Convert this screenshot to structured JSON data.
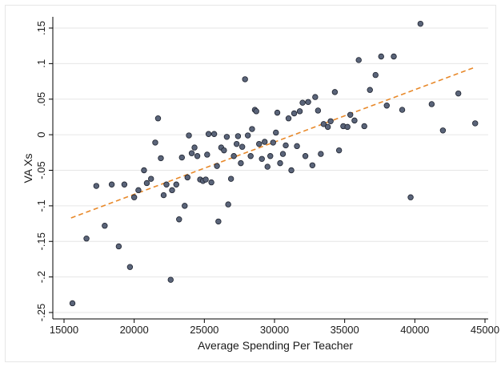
{
  "chart_data": {
    "type": "scatter",
    "xlabel": "Average Spending Per Teacher",
    "ylabel": "VA Xs",
    "xlim": [
      15000,
      45000
    ],
    "ylim": [
      -0.25,
      0.15
    ],
    "x_ticks": [
      15000,
      20000,
      25000,
      30000,
      35000,
      40000,
      45000
    ],
    "x_tick_labels": [
      "15000",
      "20000",
      "25000",
      "30000",
      "35000",
      "40000",
      "45000"
    ],
    "y_ticks": [
      -0.25,
      -0.2,
      -0.15,
      -0.1,
      -0.05,
      0,
      0.05,
      0.1,
      0.15
    ],
    "y_tick_labels": [
      "-.25",
      "-.2",
      "-.15",
      "-.1",
      "-.05",
      "0",
      ".05",
      ".1",
      ".15"
    ],
    "grid": "horizontal",
    "colors": {
      "marker_fill": "#5a6479",
      "marker_stroke": "#1f2430",
      "fit_line": "#e8892a",
      "grid": "#e6e6e6",
      "outer_frame": "#e6e6e6",
      "axis": "#000000"
    },
    "points": [
      {
        "x": 15600,
        "y": -0.237
      },
      {
        "x": 16600,
        "y": -0.146
      },
      {
        "x": 17300,
        "y": -0.072
      },
      {
        "x": 17900,
        "y": -0.128
      },
      {
        "x": 18400,
        "y": -0.07
      },
      {
        "x": 18900,
        "y": -0.157
      },
      {
        "x": 19300,
        "y": -0.07
      },
      {
        "x": 19700,
        "y": -0.186
      },
      {
        "x": 20000,
        "y": -0.088
      },
      {
        "x": 20300,
        "y": -0.078
      },
      {
        "x": 20700,
        "y": -0.05
      },
      {
        "x": 20900,
        "y": -0.068
      },
      {
        "x": 21200,
        "y": -0.062
      },
      {
        "x": 21500,
        "y": -0.011
      },
      {
        "x": 21700,
        "y": 0.023
      },
      {
        "x": 21900,
        "y": -0.033
      },
      {
        "x": 22100,
        "y": -0.085
      },
      {
        "x": 22300,
        "y": -0.07
      },
      {
        "x": 22600,
        "y": -0.204
      },
      {
        "x": 22700,
        "y": -0.078
      },
      {
        "x": 23000,
        "y": -0.07
      },
      {
        "x": 23200,
        "y": -0.119
      },
      {
        "x": 23400,
        "y": -0.032
      },
      {
        "x": 23600,
        "y": -0.1
      },
      {
        "x": 23800,
        "y": -0.06
      },
      {
        "x": 23900,
        "y": -0.001
      },
      {
        "x": 24100,
        "y": -0.026
      },
      {
        "x": 24300,
        "y": -0.018
      },
      {
        "x": 24500,
        "y": -0.03
      },
      {
        "x": 24700,
        "y": -0.063
      },
      {
        "x": 24900,
        "y": -0.065
      },
      {
        "x": 25100,
        "y": -0.063
      },
      {
        "x": 25200,
        "y": -0.028
      },
      {
        "x": 25300,
        "y": 0.001
      },
      {
        "x": 25500,
        "y": -0.067
      },
      {
        "x": 25700,
        "y": 0.001
      },
      {
        "x": 25900,
        "y": -0.044
      },
      {
        "x": 26000,
        "y": -0.122
      },
      {
        "x": 26200,
        "y": -0.018
      },
      {
        "x": 26400,
        "y": -0.022
      },
      {
        "x": 26600,
        "y": -0.003
      },
      {
        "x": 26700,
        "y": -0.098
      },
      {
        "x": 26900,
        "y": -0.062
      },
      {
        "x": 27100,
        "y": -0.03
      },
      {
        "x": 27300,
        "y": -0.013
      },
      {
        "x": 27400,
        "y": -0.002
      },
      {
        "x": 27600,
        "y": -0.04
      },
      {
        "x": 27700,
        "y": -0.017
      },
      {
        "x": 27900,
        "y": 0.078
      },
      {
        "x": 28100,
        "y": -0.001
      },
      {
        "x": 28300,
        "y": -0.03
      },
      {
        "x": 28400,
        "y": 0.008
      },
      {
        "x": 28600,
        "y": 0.035
      },
      {
        "x": 28700,
        "y": 0.033
      },
      {
        "x": 28900,
        "y": -0.013
      },
      {
        "x": 29100,
        "y": -0.034
      },
      {
        "x": 29300,
        "y": -0.01
      },
      {
        "x": 29500,
        "y": -0.045
      },
      {
        "x": 29700,
        "y": -0.03
      },
      {
        "x": 29900,
        "y": -0.011
      },
      {
        "x": 30100,
        "y": 0.003
      },
      {
        "x": 30200,
        "y": 0.031
      },
      {
        "x": 30400,
        "y": -0.04
      },
      {
        "x": 30600,
        "y": -0.027
      },
      {
        "x": 30800,
        "y": -0.015
      },
      {
        "x": 31000,
        "y": 0.023
      },
      {
        "x": 31200,
        "y": -0.05
      },
      {
        "x": 31400,
        "y": 0.03
      },
      {
        "x": 31600,
        "y": -0.016
      },
      {
        "x": 31800,
        "y": 0.033
      },
      {
        "x": 32000,
        "y": 0.045
      },
      {
        "x": 32200,
        "y": -0.03
      },
      {
        "x": 32400,
        "y": 0.046
      },
      {
        "x": 32700,
        "y": -0.043
      },
      {
        "x": 32900,
        "y": 0.053
      },
      {
        "x": 33100,
        "y": 0.034
      },
      {
        "x": 33300,
        "y": -0.027
      },
      {
        "x": 33500,
        "y": 0.015
      },
      {
        "x": 33800,
        "y": 0.011
      },
      {
        "x": 34000,
        "y": 0.019
      },
      {
        "x": 34300,
        "y": 0.06
      },
      {
        "x": 34600,
        "y": -0.022
      },
      {
        "x": 34900,
        "y": 0.012
      },
      {
        "x": 35200,
        "y": 0.011
      },
      {
        "x": 35400,
        "y": 0.028
      },
      {
        "x": 35700,
        "y": 0.02
      },
      {
        "x": 36000,
        "y": 0.105
      },
      {
        "x": 36400,
        "y": 0.012
      },
      {
        "x": 36800,
        "y": 0.063
      },
      {
        "x": 37200,
        "y": 0.084
      },
      {
        "x": 37600,
        "y": 0.11
      },
      {
        "x": 38000,
        "y": 0.041
      },
      {
        "x": 38500,
        "y": 0.11
      },
      {
        "x": 39100,
        "y": 0.035
      },
      {
        "x": 39700,
        "y": -0.088
      },
      {
        "x": 40400,
        "y": 0.156
      },
      {
        "x": 41200,
        "y": 0.043
      },
      {
        "x": 42000,
        "y": 0.006
      },
      {
        "x": 43100,
        "y": 0.058
      },
      {
        "x": 44300,
        "y": 0.016
      }
    ],
    "fit_line": {
      "style": "dashed",
      "x": [
        15500,
        44300
      ],
      "y": [
        -0.117,
        0.095
      ]
    }
  }
}
